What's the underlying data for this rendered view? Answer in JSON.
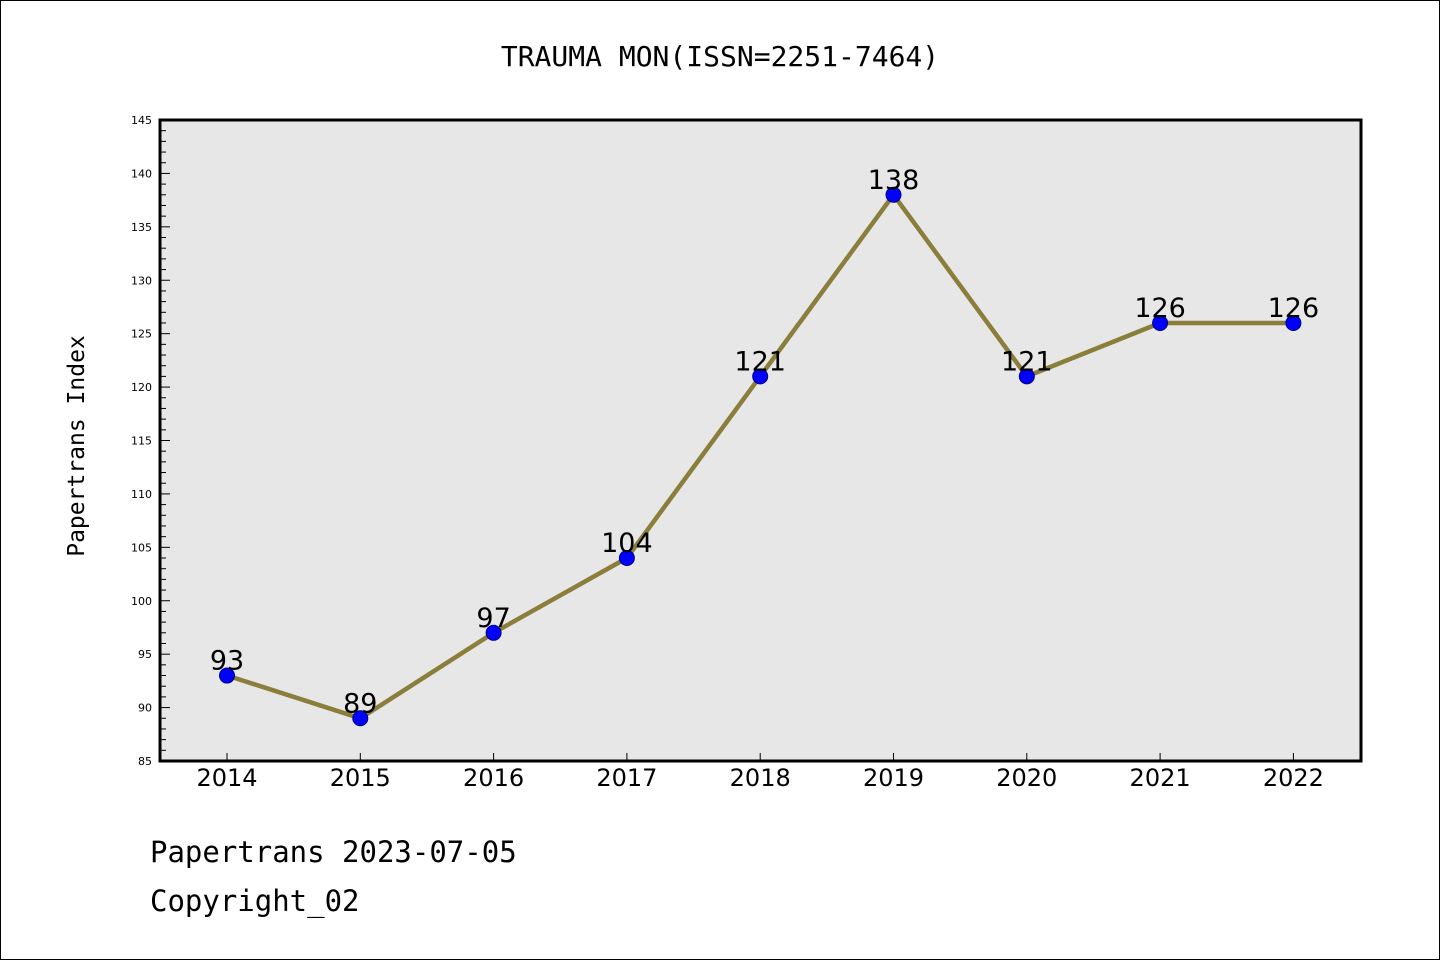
{
  "chart_data": {
    "type": "line",
    "title": "TRAUMA MON(ISSN=2251-7464)",
    "xlabel": "",
    "ylabel": "Papertrans Index",
    "categories": [
      "2014",
      "2015",
      "2016",
      "2017",
      "2018",
      "2019",
      "2020",
      "2021",
      "2022"
    ],
    "values": [
      93,
      89,
      97,
      104,
      121,
      138,
      121,
      126,
      126
    ],
    "data_labels": [
      "93",
      "89",
      "97",
      "104",
      "121",
      "138",
      "121",
      "126",
      "126"
    ],
    "ylim": [
      85,
      145
    ],
    "yticks": [
      85,
      90,
      95,
      100,
      105,
      110,
      115,
      120,
      125,
      130,
      135,
      140,
      145
    ],
    "ytick_labels": [
      "85",
      "90",
      "95",
      "100",
      "105",
      "110",
      "115",
      "120",
      "125",
      "130",
      "135",
      "140",
      "145"
    ],
    "grid": false,
    "colors": {
      "line": "#8B7D3A",
      "marker": "#0000FF",
      "plot_background": "#E7E7E7",
      "axis": "#000000"
    }
  },
  "footer": {
    "date": "Papertrans 2023-07-05",
    "copyright": "Copyright_02"
  }
}
